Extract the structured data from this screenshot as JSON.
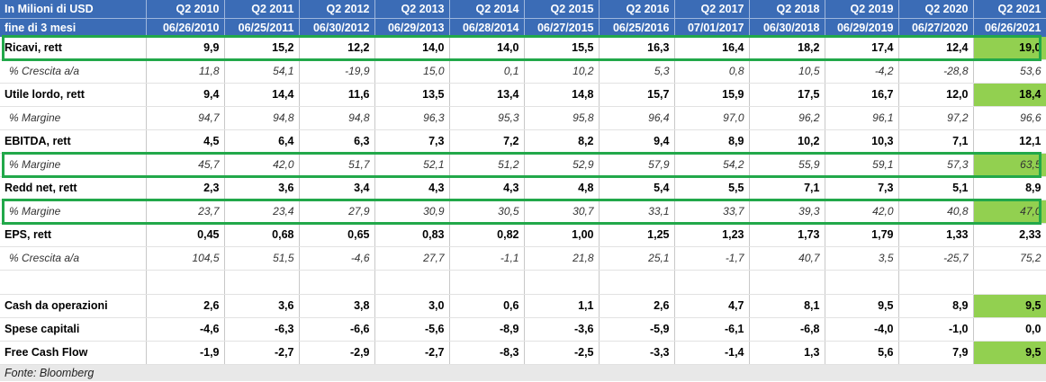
{
  "header": {
    "label_line1": "In Milioni di USD",
    "label_line2": "fine di 3 mesi",
    "columns": [
      {
        "q": "Q2 2010",
        "d": "06/26/2010"
      },
      {
        "q": "Q2 2011",
        "d": "06/25/2011"
      },
      {
        "q": "Q2 2012",
        "d": "06/30/2012"
      },
      {
        "q": "Q2 2013",
        "d": "06/29/2013"
      },
      {
        "q": "Q2 2014",
        "d": "06/28/2014"
      },
      {
        "q": "Q2 2015",
        "d": "06/27/2015"
      },
      {
        "q": "Q2 2016",
        "d": "06/25/2016"
      },
      {
        "q": "Q2 2017",
        "d": "07/01/2017"
      },
      {
        "q": "Q2 2018",
        "d": "06/30/2018"
      },
      {
        "q": "Q2 2019",
        "d": "06/29/2019"
      },
      {
        "q": "Q2 2020",
        "d": "06/27/2020"
      },
      {
        "q": "Q2 2021",
        "d": "06/26/2021"
      }
    ]
  },
  "rows": [
    {
      "label": "Ricavi, rett",
      "kind": "main",
      "boxed": true,
      "values": [
        "9,9",
        "15,2",
        "12,2",
        "14,0",
        "14,0",
        "15,5",
        "16,3",
        "16,4",
        "18,2",
        "17,4",
        "12,4",
        "19,0"
      ],
      "highlight": [
        11
      ]
    },
    {
      "label": "% Crescita a/a",
      "kind": "sub",
      "values": [
        "11,8",
        "54,1",
        "-19,9",
        "15,0",
        "0,1",
        "10,2",
        "5,3",
        "0,8",
        "10,5",
        "-4,2",
        "-28,8",
        "53,6"
      ],
      "highlight": []
    },
    {
      "label": "Utile lordo, rett",
      "kind": "main",
      "values": [
        "9,4",
        "14,4",
        "11,6",
        "13,5",
        "13,4",
        "14,8",
        "15,7",
        "15,9",
        "17,5",
        "16,7",
        "12,0",
        "18,4"
      ],
      "highlight": [
        11
      ]
    },
    {
      "label": "% Margine",
      "kind": "sub",
      "values": [
        "94,7",
        "94,8",
        "94,8",
        "96,3",
        "95,3",
        "95,8",
        "96,4",
        "97,0",
        "96,2",
        "96,1",
        "97,2",
        "96,6"
      ],
      "highlight": []
    },
    {
      "label": "EBITDA, rett",
      "kind": "main",
      "values": [
        "4,5",
        "6,4",
        "6,3",
        "7,3",
        "7,2",
        "8,2",
        "9,4",
        "8,9",
        "10,2",
        "10,3",
        "7,1",
        "12,1"
      ],
      "highlight": []
    },
    {
      "label": "% Margine",
      "kind": "sub",
      "boxed": true,
      "values": [
        "45,7",
        "42,0",
        "51,7",
        "52,1",
        "51,2",
        "52,9",
        "57,9",
        "54,2",
        "55,9",
        "59,1",
        "57,3",
        "63,5"
      ],
      "highlight": [
        11
      ]
    },
    {
      "label": "Redd net, rett",
      "kind": "main",
      "values": [
        "2,3",
        "3,6",
        "3,4",
        "4,3",
        "4,3",
        "4,8",
        "5,4",
        "5,5",
        "7,1",
        "7,3",
        "5,1",
        "8,9"
      ],
      "highlight": []
    },
    {
      "label": "% Margine",
      "kind": "sub",
      "boxed": true,
      "values": [
        "23,7",
        "23,4",
        "27,9",
        "30,9",
        "30,5",
        "30,7",
        "33,1",
        "33,7",
        "39,3",
        "42,0",
        "40,8",
        "47,0"
      ],
      "highlight": [
        11
      ]
    },
    {
      "label": "EPS, rett",
      "kind": "main",
      "values": [
        "0,45",
        "0,68",
        "0,65",
        "0,83",
        "0,82",
        "1,00",
        "1,25",
        "1,23",
        "1,73",
        "1,79",
        "1,33",
        "2,33"
      ],
      "highlight": []
    },
    {
      "label": "% Crescita a/a",
      "kind": "sub",
      "values": [
        "104,5",
        "51,5",
        "-4,6",
        "27,7",
        "-1,1",
        "21,8",
        "25,1",
        "-1,7",
        "40,7",
        "3,5",
        "-25,7",
        "75,2"
      ],
      "highlight": []
    },
    {
      "label": "",
      "kind": "blank",
      "values": [
        "",
        "",
        "",
        "",
        "",
        "",
        "",
        "",
        "",
        "",
        "",
        ""
      ],
      "highlight": []
    },
    {
      "label": "Cash da operazioni",
      "kind": "main",
      "values": [
        "2,6",
        "3,6",
        "3,8",
        "3,0",
        "0,6",
        "1,1",
        "2,6",
        "4,7",
        "8,1",
        "9,5",
        "8,9",
        "9,5"
      ],
      "highlight": [
        11
      ]
    },
    {
      "label": "Spese capitali",
      "kind": "main",
      "values": [
        "-4,6",
        "-6,3",
        "-6,6",
        "-5,6",
        "-8,9",
        "-3,6",
        "-5,9",
        "-6,1",
        "-6,8",
        "-4,0",
        "-1,0",
        "0,0"
      ],
      "highlight": []
    },
    {
      "label": "Free Cash Flow",
      "kind": "main",
      "values": [
        "-1,9",
        "-2,7",
        "-2,9",
        "-2,7",
        "-8,3",
        "-2,5",
        "-3,3",
        "-1,4",
        "1,3",
        "5,6",
        "7,9",
        "9,5"
      ],
      "highlight": [
        11
      ]
    }
  ],
  "footer": {
    "source": "Fonte: Bloomberg"
  },
  "colors": {
    "header_bg": "#3B6CB6",
    "highlight": "#92D050",
    "box_border": "#22A84A"
  }
}
